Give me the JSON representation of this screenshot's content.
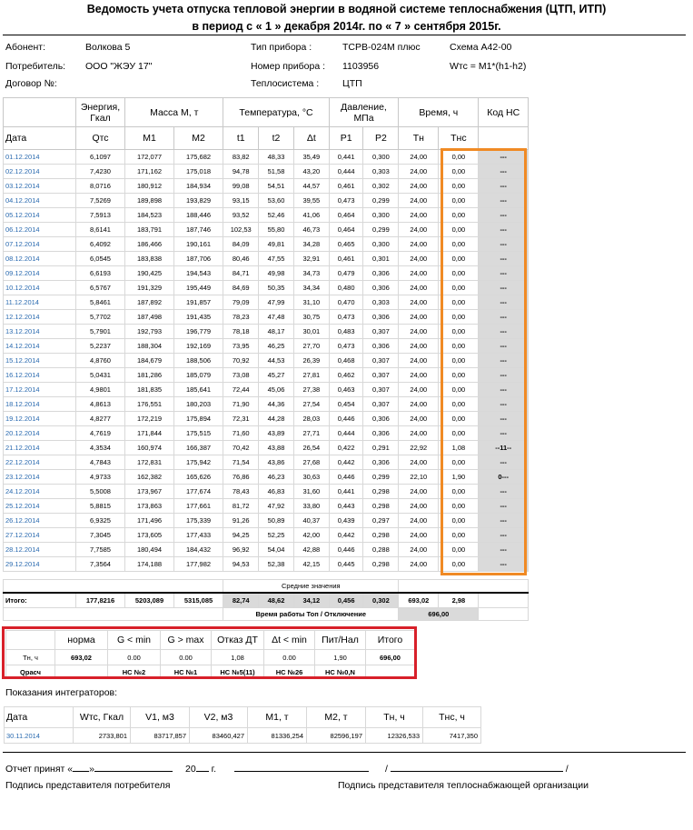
{
  "title": {
    "line1": "Ведомость учета отпуска тепловой энергии в водяной системе теплоснабжения (ЦТП, ИТП)",
    "line2": "в период с « 1 » декабря 2014г. по « 7 » сентября 2015г."
  },
  "info": {
    "abonent_label": "Абонент:",
    "abonent_value": "Волкова 5",
    "consumer_label": "Потребитель:",
    "consumer_value": "ООО \"ЖЭУ 17\"",
    "contract_label": "Договор №:",
    "device_type_label": "Тип прибора :",
    "device_type_value": "ТСРВ-024М плюс",
    "scheme": "Схема А42-00",
    "device_number_label": "Номер прибора :",
    "device_number_value": "1103956",
    "formula": "Wтс = M1*(h1-h2)",
    "heat_system_label": "Теплосистема :",
    "heat_system_value": "ЦТП"
  },
  "table": {
    "group_headers": {
      "energy": "Энергия, Гкал",
      "mass": "Масса М, т",
      "temperature": "Температура, °С",
      "pressure": "Давление, МПа",
      "time": "Время, ч",
      "ns_code": "Код НС"
    },
    "columns": [
      "Дата",
      "Qтс",
      "M1",
      "M2",
      "t1",
      "t2",
      "Δt",
      "P1",
      "P2",
      "Тн",
      "Тнс"
    ],
    "rows": [
      [
        "01.12.2014",
        "6,1097",
        "172,077",
        "175,682",
        "83,82",
        "48,33",
        "35,49",
        "0,441",
        "0,300",
        "24,00",
        "0,00",
        "---"
      ],
      [
        "02.12.2014",
        "7,4230",
        "171,162",
        "175,018",
        "94,78",
        "51,58",
        "43,20",
        "0,444",
        "0,303",
        "24,00",
        "0,00",
        "---"
      ],
      [
        "03.12.2014",
        "8,0716",
        "180,912",
        "184,934",
        "99,08",
        "54,51",
        "44,57",
        "0,461",
        "0,302",
        "24,00",
        "0,00",
        "---"
      ],
      [
        "04.12.2014",
        "7,5269",
        "189,898",
        "193,829",
        "93,15",
        "53,60",
        "39,55",
        "0,473",
        "0,299",
        "24,00",
        "0,00",
        "---"
      ],
      [
        "05.12.2014",
        "7,5913",
        "184,523",
        "188,446",
        "93,52",
        "52,46",
        "41,06",
        "0,464",
        "0,300",
        "24,00",
        "0,00",
        "---"
      ],
      [
        "06.12.2014",
        "8,6141",
        "183,791",
        "187,746",
        "102,53",
        "55,80",
        "46,73",
        "0,464",
        "0,299",
        "24,00",
        "0,00",
        "---"
      ],
      [
        "07.12.2014",
        "6,4092",
        "186,466",
        "190,161",
        "84,09",
        "49,81",
        "34,28",
        "0,465",
        "0,300",
        "24,00",
        "0,00",
        "---"
      ],
      [
        "08.12.2014",
        "6,0545",
        "183,838",
        "187,706",
        "80,46",
        "47,55",
        "32,91",
        "0,461",
        "0,301",
        "24,00",
        "0,00",
        "---"
      ],
      [
        "09.12.2014",
        "6,6193",
        "190,425",
        "194,543",
        "84,71",
        "49,98",
        "34,73",
        "0,479",
        "0,306",
        "24,00",
        "0,00",
        "---"
      ],
      [
        "10.12.2014",
        "6,5767",
        "191,329",
        "195,449",
        "84,69",
        "50,35",
        "34,34",
        "0,480",
        "0,306",
        "24,00",
        "0,00",
        "---"
      ],
      [
        "11.12.2014",
        "5,8461",
        "187,892",
        "191,857",
        "79,09",
        "47,99",
        "31,10",
        "0,470",
        "0,303",
        "24,00",
        "0,00",
        "---"
      ],
      [
        "12.12.2014",
        "5,7702",
        "187,498",
        "191,435",
        "78,23",
        "47,48",
        "30,75",
        "0,473",
        "0,306",
        "24,00",
        "0,00",
        "---"
      ],
      [
        "13.12.2014",
        "5,7901",
        "192,793",
        "196,779",
        "78,18",
        "48,17",
        "30,01",
        "0,483",
        "0,307",
        "24,00",
        "0,00",
        "---"
      ],
      [
        "14.12.2014",
        "5,2237",
        "188,304",
        "192,169",
        "73,95",
        "46,25",
        "27,70",
        "0,473",
        "0,306",
        "24,00",
        "0,00",
        "---"
      ],
      [
        "15.12.2014",
        "4,8760",
        "184,679",
        "188,506",
        "70,92",
        "44,53",
        "26,39",
        "0,468",
        "0,307",
        "24,00",
        "0,00",
        "---"
      ],
      [
        "16.12.2014",
        "5,0431",
        "181,286",
        "185,079",
        "73,08",
        "45,27",
        "27,81",
        "0,462",
        "0,307",
        "24,00",
        "0,00",
        "---"
      ],
      [
        "17.12.2014",
        "4,9801",
        "181,835",
        "185,641",
        "72,44",
        "45,06",
        "27,38",
        "0,463",
        "0,307",
        "24,00",
        "0,00",
        "---"
      ],
      [
        "18.12.2014",
        "4,8613",
        "176,551",
        "180,203",
        "71,90",
        "44,36",
        "27,54",
        "0,454",
        "0,307",
        "24,00",
        "0,00",
        "---"
      ],
      [
        "19.12.2014",
        "4,8277",
        "172,219",
        "175,894",
        "72,31",
        "44,28",
        "28,03",
        "0,446",
        "0,306",
        "24,00",
        "0,00",
        "---"
      ],
      [
        "20.12.2014",
        "4,7619",
        "171,844",
        "175,515",
        "71,60",
        "43,89",
        "27,71",
        "0,444",
        "0,306",
        "24,00",
        "0,00",
        "---"
      ],
      [
        "21.12.2014",
        "4,3534",
        "160,974",
        "166,387",
        "70,42",
        "43,88",
        "26,54",
        "0,422",
        "0,291",
        "22,92",
        "1,08",
        "--11--"
      ],
      [
        "22.12.2014",
        "4,7843",
        "172,831",
        "175,942",
        "71,54",
        "43,86",
        "27,68",
        "0,442",
        "0,306",
        "24,00",
        "0,00",
        "---"
      ],
      [
        "23.12.2014",
        "4,9733",
        "162,382",
        "165,626",
        "76,86",
        "46,23",
        "30,63",
        "0,446",
        "0,299",
        "22,10",
        "1,90",
        "0---"
      ],
      [
        "24.12.2014",
        "5,5008",
        "173,967",
        "177,674",
        "78,43",
        "46,83",
        "31,60",
        "0,441",
        "0,298",
        "24,00",
        "0,00",
        "---"
      ],
      [
        "25.12.2014",
        "5,8815",
        "173,863",
        "177,661",
        "81,72",
        "47,92",
        "33,80",
        "0,443",
        "0,298",
        "24,00",
        "0,00",
        "---"
      ],
      [
        "26.12.2014",
        "6,9325",
        "171,496",
        "175,339",
        "91,26",
        "50,89",
        "40,37",
        "0,439",
        "0,297",
        "24,00",
        "0,00",
        "---"
      ],
      [
        "27.12.2014",
        "7,3045",
        "173,605",
        "177,433",
        "94,25",
        "52,25",
        "42,00",
        "0,442",
        "0,298",
        "24,00",
        "0,00",
        "---"
      ],
      [
        "28.12.2014",
        "7,7585",
        "180,494",
        "184,432",
        "96,92",
        "54,04",
        "42,88",
        "0,446",
        "0,288",
        "24,00",
        "0,00",
        "---"
      ],
      [
        "29.12.2014",
        "7,3564",
        "174,188",
        "177,982",
        "94,53",
        "52,38",
        "42,15",
        "0,445",
        "0,298",
        "24,00",
        "0,00",
        "---"
      ]
    ],
    "avg_label": "Средние значения",
    "totals": {
      "label": "Итого:",
      "q": "177,8216",
      "m1": "5203,089",
      "m2": "5315,085",
      "t1": "82,74",
      "t2": "48,62",
      "dt": "34,12",
      "p1": "0,456",
      "p2": "0,302",
      "tn": "693,02",
      "tns": "2,98"
    },
    "worktime_label": "Время работы Топ / Отключение",
    "worktime_value": "696,00"
  },
  "summary": {
    "headers": [
      "норма",
      "G < min",
      "G > max",
      "Отказ ДТ",
      "Δt < min",
      "Пит/Нал",
      "Итого"
    ],
    "row1_label": "Тн, ч",
    "row1": [
      "693,02",
      "0.00",
      "0.00",
      "1,08",
      "0.00",
      "1,90",
      "696,00"
    ],
    "row2_label": "Qрасч",
    "row2": [
      "",
      "НС №2",
      "НС №1",
      "НС №5(11)",
      "НС №26",
      "НС №0,N",
      ""
    ]
  },
  "integrators": {
    "title": "Показания интеграторов:",
    "headers": [
      "Дата",
      "Wтс, Гкал",
      "V1, м3",
      "V2, м3",
      "M1, т",
      "M2, т",
      "Тн, ч",
      "Тнс, ч"
    ],
    "row": [
      "30.11.2014",
      "2733,801",
      "83717,857",
      "83460,427",
      "81336,254",
      "82596,197",
      "12326,533",
      "7417,350"
    ]
  },
  "footer": {
    "accepted_prefix": "Отчет принят «",
    "accepted_mid": "»",
    "year": "20",
    "year_suffix": "г.",
    "slash": "/",
    "consumer_sign": "Подпись представителя потребителя",
    "supplier_sign": "Подпись представителя теплоснабжающей организации"
  }
}
